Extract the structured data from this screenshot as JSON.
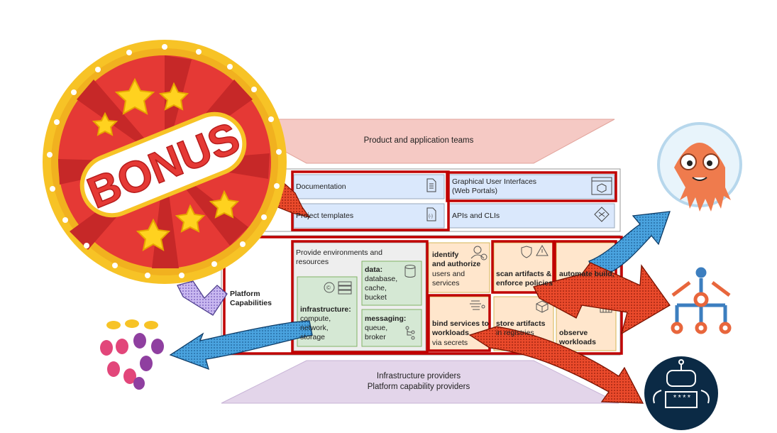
{
  "teams": {
    "label": "Product and application teams"
  },
  "interfaces": {
    "documentation": "Documentation",
    "project_templates": "Project templates",
    "gui": "Graphical User Interfaces",
    "gui_sub": "(Web Portals)",
    "apis": "APIs and CLIs"
  },
  "platform": {
    "label_line1": "Platform",
    "label_line2": "Capabilities",
    "provide_line1": "Provide environments and",
    "provide_line2": "resources",
    "infra_title": "infrastructure:",
    "infra_items": [
      "compute,",
      "network,",
      "storage"
    ],
    "data_title": "data:",
    "data_items": [
      "database,",
      "cache,",
      "bucket"
    ],
    "messaging_title": "messaging:",
    "messaging_items": [
      "queue,",
      "broker"
    ],
    "identify_line1": "identify",
    "identify_line2": "and authorize",
    "identify_line3": "users and",
    "identify_line4": "services",
    "scan_line1": "scan artifacts &",
    "scan_line2": "enforce policies",
    "automate_line1": "automate build,",
    "bind_line1": "bind services to",
    "bind_line2": "workloads",
    "bind_line3": "via secrets",
    "store_line1": "store artifacts",
    "store_line2": "in registries",
    "observe_line1": "observe",
    "observe_line2": "workloads"
  },
  "providers": {
    "line1": "Infrastructure providers",
    "line2": "Platform capability providers"
  },
  "badge": {
    "text": "BONUS"
  },
  "vault": {
    "label": "****"
  },
  "colors": {
    "highlight_red": "#c00000",
    "badge_red": "#e53935",
    "badge_gold": "#f7c326",
    "arrow_blue": "#4aa3df",
    "arrow_red": "#e8462a",
    "argo_orange": "#ef7b4d",
    "teams_pink": "#f5c9c4",
    "providers_lilac": "#e3d5ea",
    "cell_blue": "#dae8fc",
    "cell_green": "#d5e8d4",
    "cell_orange": "#ffe6cc",
    "cell_gray": "#eeeeee"
  },
  "icons": [
    "document-icon",
    "template-icon",
    "web-portal-icon",
    "api-cli-icon",
    "database-icon",
    "user-check-icon",
    "shield-icon",
    "warning-icon",
    "filter-icon",
    "package-icon",
    "pipeline-icon",
    "argo-octopus-icon",
    "kubeflow-icon",
    "crossplane-icon",
    "secrets-robot-icon",
    "bonus-badge-icon"
  ]
}
